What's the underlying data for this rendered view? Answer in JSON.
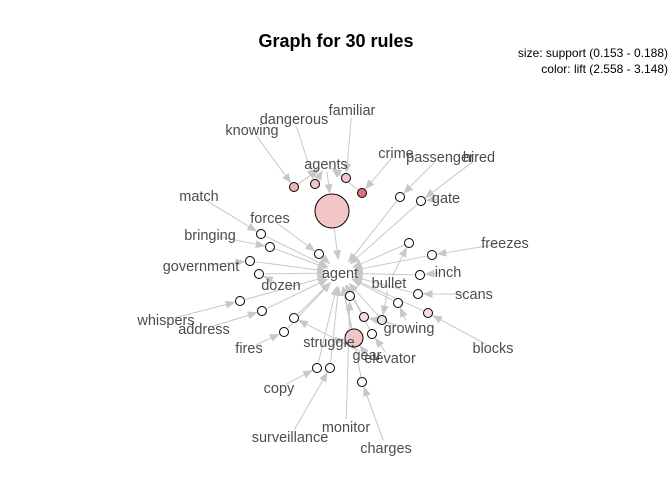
{
  "title": "Graph for 30 rules",
  "legend": {
    "size_line": "size: support (0.153 - 0.188)",
    "color_line": "color: lift (2.558 - 3.148)"
  },
  "colors": {
    "edge": "#c8c8c8",
    "node_outline": "#000000",
    "lift_low": "#ffffff",
    "lift_high": "#e6707a",
    "label": "#4d4d4d"
  },
  "items": [
    {
      "id": "agent",
      "label": "agent"
    },
    {
      "id": "agents",
      "label": "agents"
    },
    {
      "id": "knowing",
      "label": "knowing"
    },
    {
      "id": "dangerous",
      "label": "dangerous"
    },
    {
      "id": "familiar",
      "label": "familiar"
    },
    {
      "id": "crime",
      "label": "crime"
    },
    {
      "id": "passenger",
      "label": "passenger"
    },
    {
      "id": "hired",
      "label": "hired"
    },
    {
      "id": "gate",
      "label": "gate"
    },
    {
      "id": "match",
      "label": "match"
    },
    {
      "id": "forces",
      "label": "forces"
    },
    {
      "id": "freezes",
      "label": "freezes"
    },
    {
      "id": "bringing",
      "label": "bringing"
    },
    {
      "id": "government",
      "label": "government"
    },
    {
      "id": "inch",
      "label": "inch"
    },
    {
      "id": "dozen",
      "label": "dozen"
    },
    {
      "id": "bullet",
      "label": "bullet"
    },
    {
      "id": "scans",
      "label": "scans"
    },
    {
      "id": "whispers",
      "label": "whispers"
    },
    {
      "id": "address",
      "label": "address"
    },
    {
      "id": "growing",
      "label": "growing"
    },
    {
      "id": "fires",
      "label": "fires"
    },
    {
      "id": "struggle",
      "label": "struggle"
    },
    {
      "id": "blocks",
      "label": "blocks"
    },
    {
      "id": "gear",
      "label": "gear"
    },
    {
      "id": "elevator",
      "label": "elevator"
    },
    {
      "id": "copy",
      "label": "copy"
    },
    {
      "id": "monitor",
      "label": "monitor"
    },
    {
      "id": "surveillance",
      "label": "surveillance"
    },
    {
      "id": "charges",
      "label": "charges"
    }
  ],
  "rules": [
    {
      "id": "rule-1",
      "lift": "high",
      "support_rank": 1,
      "lhs": [
        "knowing"
      ],
      "rhs": "agents"
    },
    {
      "id": "rule-2",
      "lift": "mid",
      "support_rank": 1,
      "lhs": [
        "dangerous"
      ],
      "rhs": "agents"
    },
    {
      "id": "rule-3",
      "lift": "mid",
      "support_rank": 1,
      "lhs": [
        "familiar"
      ],
      "rhs": "agents"
    },
    {
      "id": "rule-4",
      "lift": "max",
      "support_rank": 1,
      "lhs": [
        "crime"
      ],
      "rhs": "agents"
    },
    {
      "id": "rule-5",
      "lift": "mid",
      "support_rank": 5,
      "lhs": [
        "agents"
      ],
      "rhs": "agent"
    },
    {
      "id": "rule-6",
      "lift": "none",
      "support_rank": 1,
      "lhs": [
        "passenger"
      ],
      "rhs": "agent"
    },
    {
      "id": "rule-7",
      "lift": "none",
      "support_rank": 1,
      "lhs": [
        "hired",
        "gate"
      ],
      "rhs": "agent"
    },
    {
      "id": "rule-8",
      "lift": "none",
      "support_rank": 1,
      "lhs": [
        "forces"
      ],
      "rhs": "agent"
    },
    {
      "id": "rule-9",
      "lift": "none",
      "support_rank": 1,
      "lhs": [
        "match"
      ],
      "rhs": "agent"
    },
    {
      "id": "rule-10",
      "lift": "none",
      "support_rank": 1,
      "lhs": [
        "bringing"
      ],
      "rhs": "agent"
    },
    {
      "id": "rule-11",
      "lift": "none",
      "support_rank": 1,
      "lhs": [
        "government"
      ],
      "rhs": "agent"
    },
    {
      "id": "rule-12",
      "lift": "none",
      "support_rank": 1,
      "lhs": [
        "freezes"
      ],
      "rhs": "agent"
    },
    {
      "id": "rule-13",
      "lift": "none",
      "support_rank": 1,
      "lhs": [
        "inch"
      ],
      "rhs": "agent"
    },
    {
      "id": "rule-14",
      "lift": "none",
      "support_rank": 1,
      "lhs": [
        "scans"
      ],
      "rhs": "agent"
    },
    {
      "id": "rule-15",
      "lift": "none",
      "support_rank": 1,
      "lhs": [
        "bullet"
      ],
      "rhs": "agent"
    },
    {
      "id": "rule-16",
      "lift": "none",
      "support_rank": 1,
      "lhs": [
        "whispers"
      ],
      "rhs": "agent"
    },
    {
      "id": "rule-17",
      "lift": "none",
      "support_rank": 1,
      "lhs": [
        "address"
      ],
      "rhs": "agent"
    },
    {
      "id": "rule-18",
      "lift": "none",
      "support_rank": 1,
      "lhs": [
        "dozen"
      ],
      "rhs": "agent"
    },
    {
      "id": "rule-19",
      "lift": "none",
      "support_rank": 1,
      "lhs": [
        "fires"
      ],
      "rhs": "agent"
    },
    {
      "id": "rule-20",
      "lift": "none",
      "support_rank": 1,
      "lhs": [
        "growing"
      ],
      "rhs": "agent"
    },
    {
      "id": "rule-21",
      "lift": "low",
      "support_rank": 1,
      "lhs": [
        "bullet"
      ],
      "rhs": "agent"
    },
    {
      "id": "rule-22",
      "lift": "none",
      "support_rank": 1,
      "lhs": [
        "elevator"
      ],
      "rhs": "agent"
    },
    {
      "id": "rule-23",
      "lift": "low",
      "support_rank": 1,
      "lhs": [
        "blocks"
      ],
      "rhs": "agent"
    },
    {
      "id": "rule-24",
      "lift": "mid",
      "support_rank": 3,
      "lhs": [
        "struggle",
        "gear"
      ],
      "rhs": "agent"
    },
    {
      "id": "rule-25",
      "lift": "low",
      "support_rank": 1,
      "lhs": [
        "growing"
      ],
      "rhs": "agent"
    },
    {
      "id": "rule-26",
      "lift": "none",
      "support_rank": 1,
      "lhs": [
        "copy"
      ],
      "rhs": "agent"
    },
    {
      "id": "rule-27",
      "lift": "none",
      "support_rank": 1,
      "lhs": [
        "surveillance"
      ],
      "rhs": "agent"
    },
    {
      "id": "rule-28",
      "lift": "none",
      "support_rank": 1,
      "lhs": [
        "monitor"
      ],
      "rhs": "agent"
    },
    {
      "id": "rule-29",
      "lift": "none",
      "support_rank": 1,
      "lhs": [
        "charges"
      ],
      "rhs": "agent"
    },
    {
      "id": "rule-30",
      "lift": "none",
      "support_rank": 1,
      "lhs": [
        "gear"
      ],
      "rhs": "agent"
    }
  ]
}
